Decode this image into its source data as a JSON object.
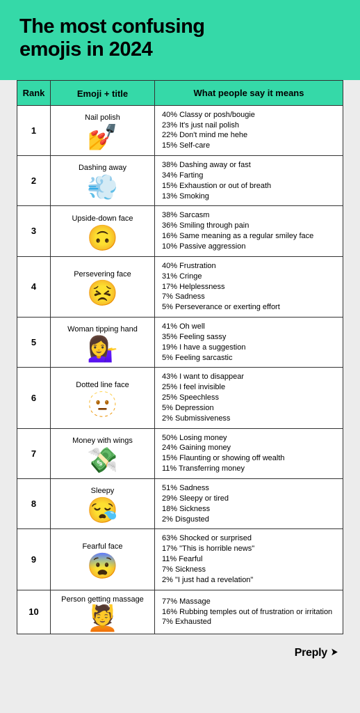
{
  "colors": {
    "header_bg": "#35d9a8",
    "table_header_bg": "#35d9a8",
    "page_bg": "#ececec",
    "border": "#333333",
    "text": "#000000"
  },
  "title_line1": "The most confusing",
  "title_line2": "emojis in 2024",
  "columns": {
    "rank": "Rank",
    "emoji": "Emoji + title",
    "meaning": "What people say it means"
  },
  "rows": [
    {
      "rank": "1",
      "emoji_title": "Nail polish",
      "emoji_glyph": "💅",
      "meanings": [
        "40% Classy or posh/bougie",
        "23% It's just nail polish",
        "22% Don't mind me hehe",
        "15% Self-care"
      ]
    },
    {
      "rank": "2",
      "emoji_title": "Dashing away",
      "emoji_glyph": "💨",
      "meanings": [
        "38% Dashing away or fast",
        "34% Farting",
        "15% Exhaustion or out of breath",
        "13% Smoking"
      ]
    },
    {
      "rank": "3",
      "emoji_title": "Upside-down face",
      "emoji_glyph": "🙃",
      "meanings": [
        "38% Sarcasm",
        "36% Smiling through pain",
        "16% Same meaning as a regular smiley face",
        "10% Passive aggression"
      ]
    },
    {
      "rank": "4",
      "emoji_title": "Persevering face",
      "emoji_glyph": "😣",
      "meanings": [
        "40% Frustration",
        "31% Cringe",
        "17% Helplessness",
        "7% Sadness",
        "5% Perseverance or exerting effort"
      ]
    },
    {
      "rank": "5",
      "emoji_title": "Woman tipping hand",
      "emoji_glyph": "💁‍♀️",
      "meanings": [
        "41% Oh well",
        "35% Feeling sassy",
        "19% I have a suggestion",
        "5% Feeling sarcastic"
      ]
    },
    {
      "rank": "6",
      "emoji_title": "Dotted line face",
      "emoji_glyph": "🫥",
      "meanings": [
        "43% I want to disappear",
        "25% I feel invisible",
        "25% Speechless",
        "5% Depression",
        "2% Submissiveness"
      ]
    },
    {
      "rank": "7",
      "emoji_title": "Money with wings",
      "emoji_glyph": "💸",
      "meanings": [
        "50% Losing money",
        "24% Gaining money",
        "15% Flaunting or showing off wealth",
        "11% Transferring money"
      ]
    },
    {
      "rank": "8",
      "emoji_title": "Sleepy",
      "emoji_glyph": "😪",
      "meanings": [
        "51% Sadness",
        "29% Sleepy or tired",
        "18% Sickness",
        "2% Disgusted"
      ]
    },
    {
      "rank": "9",
      "emoji_title": "Fearful face",
      "emoji_glyph": "😨",
      "meanings": [
        "63% Shocked or surprised",
        "17% \"This is horrible news\"",
        "11% Fearful",
        "7% Sickness",
        "2% \"I just had a revelation\""
      ]
    },
    {
      "rank": "10",
      "emoji_title": "Person getting massage",
      "emoji_glyph": "💆",
      "meanings": [
        "77% Massage",
        "16% Rubbing temples out of frustration or irritation",
        "7% Exhausted"
      ]
    }
  ],
  "footer_brand": "Preply"
}
